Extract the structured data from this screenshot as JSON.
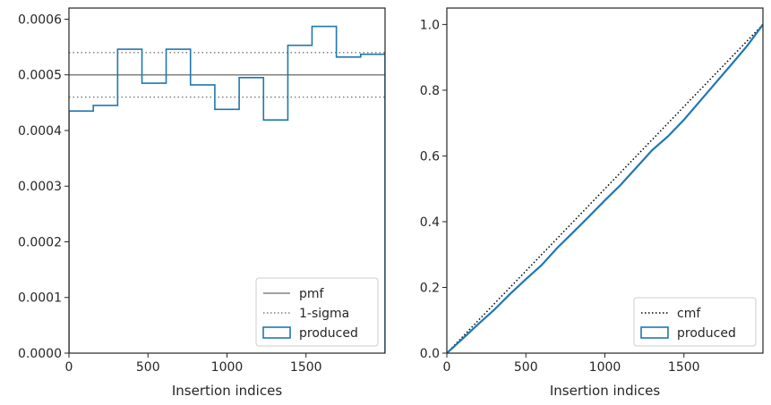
{
  "chart_data": [
    {
      "type": "step",
      "xlabel": "Insertion indices",
      "ylabel": "",
      "xlim": [
        0,
        2000
      ],
      "ylim": [
        0,
        0.00062
      ],
      "xticks": [
        0,
        500,
        1000,
        1500
      ],
      "yticks": [
        0,
        0.0001,
        0.0002,
        0.0003,
        0.0004,
        0.0005,
        0.0006
      ],
      "xtick_labels": [
        "0",
        "500",
        "1000",
        "1500"
      ],
      "ytick_labels": [
        "0.0000",
        "0.0001",
        "0.0002",
        "0.0003",
        "0.0004",
        "0.0005",
        "0.0006"
      ],
      "grid": false,
      "legend_position": "lower-right",
      "series": [
        {
          "name": "pmf",
          "style": "solid",
          "color": "#808080",
          "y": 0.0005
        },
        {
          "name": "1-sigma",
          "style": "dotted",
          "color": "#808080",
          "y_values": [
            0.00054,
            0.00046
          ]
        },
        {
          "name": "produced",
          "style": "step",
          "color": "#1f77b4",
          "bin_edges": [
            0,
            154,
            308,
            462,
            615,
            769,
            923,
            1077,
            1231,
            1385,
            1538,
            1692,
            1846,
            2000
          ],
          "values": [
            0.000435,
            0.000445,
            0.000546,
            0.000485,
            0.000546,
            0.000482,
            0.000438,
            0.000495,
            0.000419,
            0.000553,
            0.000587,
            0.000532,
            0.000537
          ]
        }
      ]
    },
    {
      "type": "line",
      "xlabel": "Insertion indices",
      "ylabel": "",
      "xlim": [
        0,
        2000
      ],
      "ylim": [
        0,
        1.05
      ],
      "xticks": [
        0,
        500,
        1000,
        1500
      ],
      "yticks": [
        0.0,
        0.2,
        0.4,
        0.6,
        0.8,
        1.0
      ],
      "xtick_labels": [
        "0",
        "500",
        "1000",
        "1500"
      ],
      "ytick_labels": [
        "0.0",
        "0.2",
        "0.4",
        "0.6",
        "0.8",
        "1.0"
      ],
      "grid": false,
      "legend_position": "lower-right",
      "series": [
        {
          "name": "cmf",
          "style": "dotted",
          "color": "#000000",
          "x": [
            0,
            2000
          ],
          "y": [
            0,
            1.0
          ]
        },
        {
          "name": "produced",
          "style": "solid",
          "color": "#1f77b4",
          "x": [
            0,
            100,
            200,
            300,
            400,
            500,
            600,
            700,
            800,
            900,
            1000,
            1100,
            1200,
            1300,
            1400,
            1500,
            1600,
            1700,
            1800,
            1900,
            2000
          ],
          "y": [
            0,
            0.044,
            0.089,
            0.132,
            0.18,
            0.225,
            0.268,
            0.321,
            0.368,
            0.416,
            0.465,
            0.512,
            0.565,
            0.618,
            0.66,
            0.71,
            0.766,
            0.822,
            0.878,
            0.935,
            1.0
          ]
        }
      ]
    }
  ]
}
